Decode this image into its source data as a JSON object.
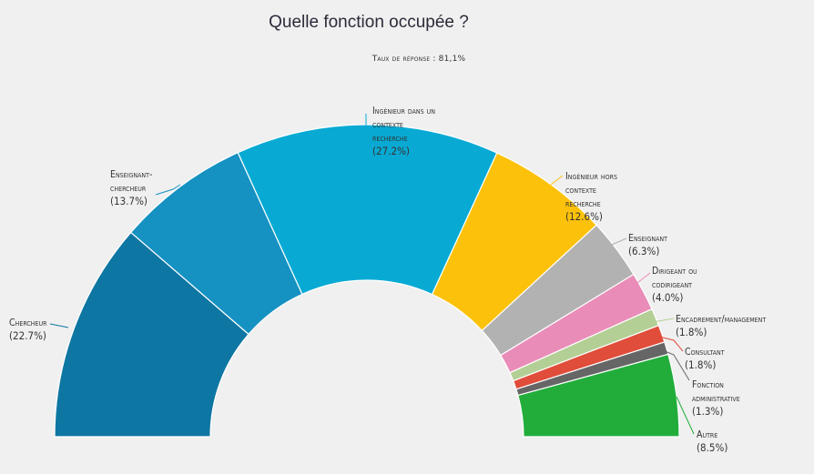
{
  "title": "Quelle fonction occupée ?",
  "subtitle": "Taux de réponse : 81,1%",
  "chart_data": {
    "type": "pie",
    "subtype": "semicircle-donut",
    "title": "Quelle fonction occupée ?",
    "subtitle": "Taux de réponse : 81,1%",
    "legend": "none",
    "slices": [
      {
        "label": "Chercheur",
        "value": 22.7,
        "value_label": "(22.7%)",
        "color": "#0e76a2"
      },
      {
        "label": "Enseignant-chercheur",
        "value": 13.7,
        "value_label": "(13.7%)",
        "color": "#1591c2"
      },
      {
        "label": "Ingénieur dans un contexte recherche",
        "value": 27.2,
        "value_label": "(27.2%)",
        "color": "#08aad4"
      },
      {
        "label": "Ingénieur hors contexte recherche",
        "value": 12.6,
        "value_label": "(12.6%)",
        "color": "#fcc10a"
      },
      {
        "label": "Enseignant",
        "value": 6.3,
        "value_label": "(6.3%)",
        "color": "#b2b2b2"
      },
      {
        "label": "Dirigeant ou codirigeant",
        "value": 4.0,
        "value_label": "(4.0%)",
        "color": "#e98cb8"
      },
      {
        "label": "Encadrement/management",
        "value": 1.8,
        "value_label": "(1.8%)",
        "color": "#b4cf95"
      },
      {
        "label": "Consultant",
        "value": 1.8,
        "value_label": "(1.8%)",
        "color": "#e04d3a"
      },
      {
        "label": "Fonction administrative",
        "value": 1.3,
        "value_label": "(1.3%)",
        "color": "#666666"
      },
      {
        "label": "Autre",
        "value": 8.5,
        "value_label": "(8.5%)",
        "color": "#22ad3b"
      }
    ]
  }
}
